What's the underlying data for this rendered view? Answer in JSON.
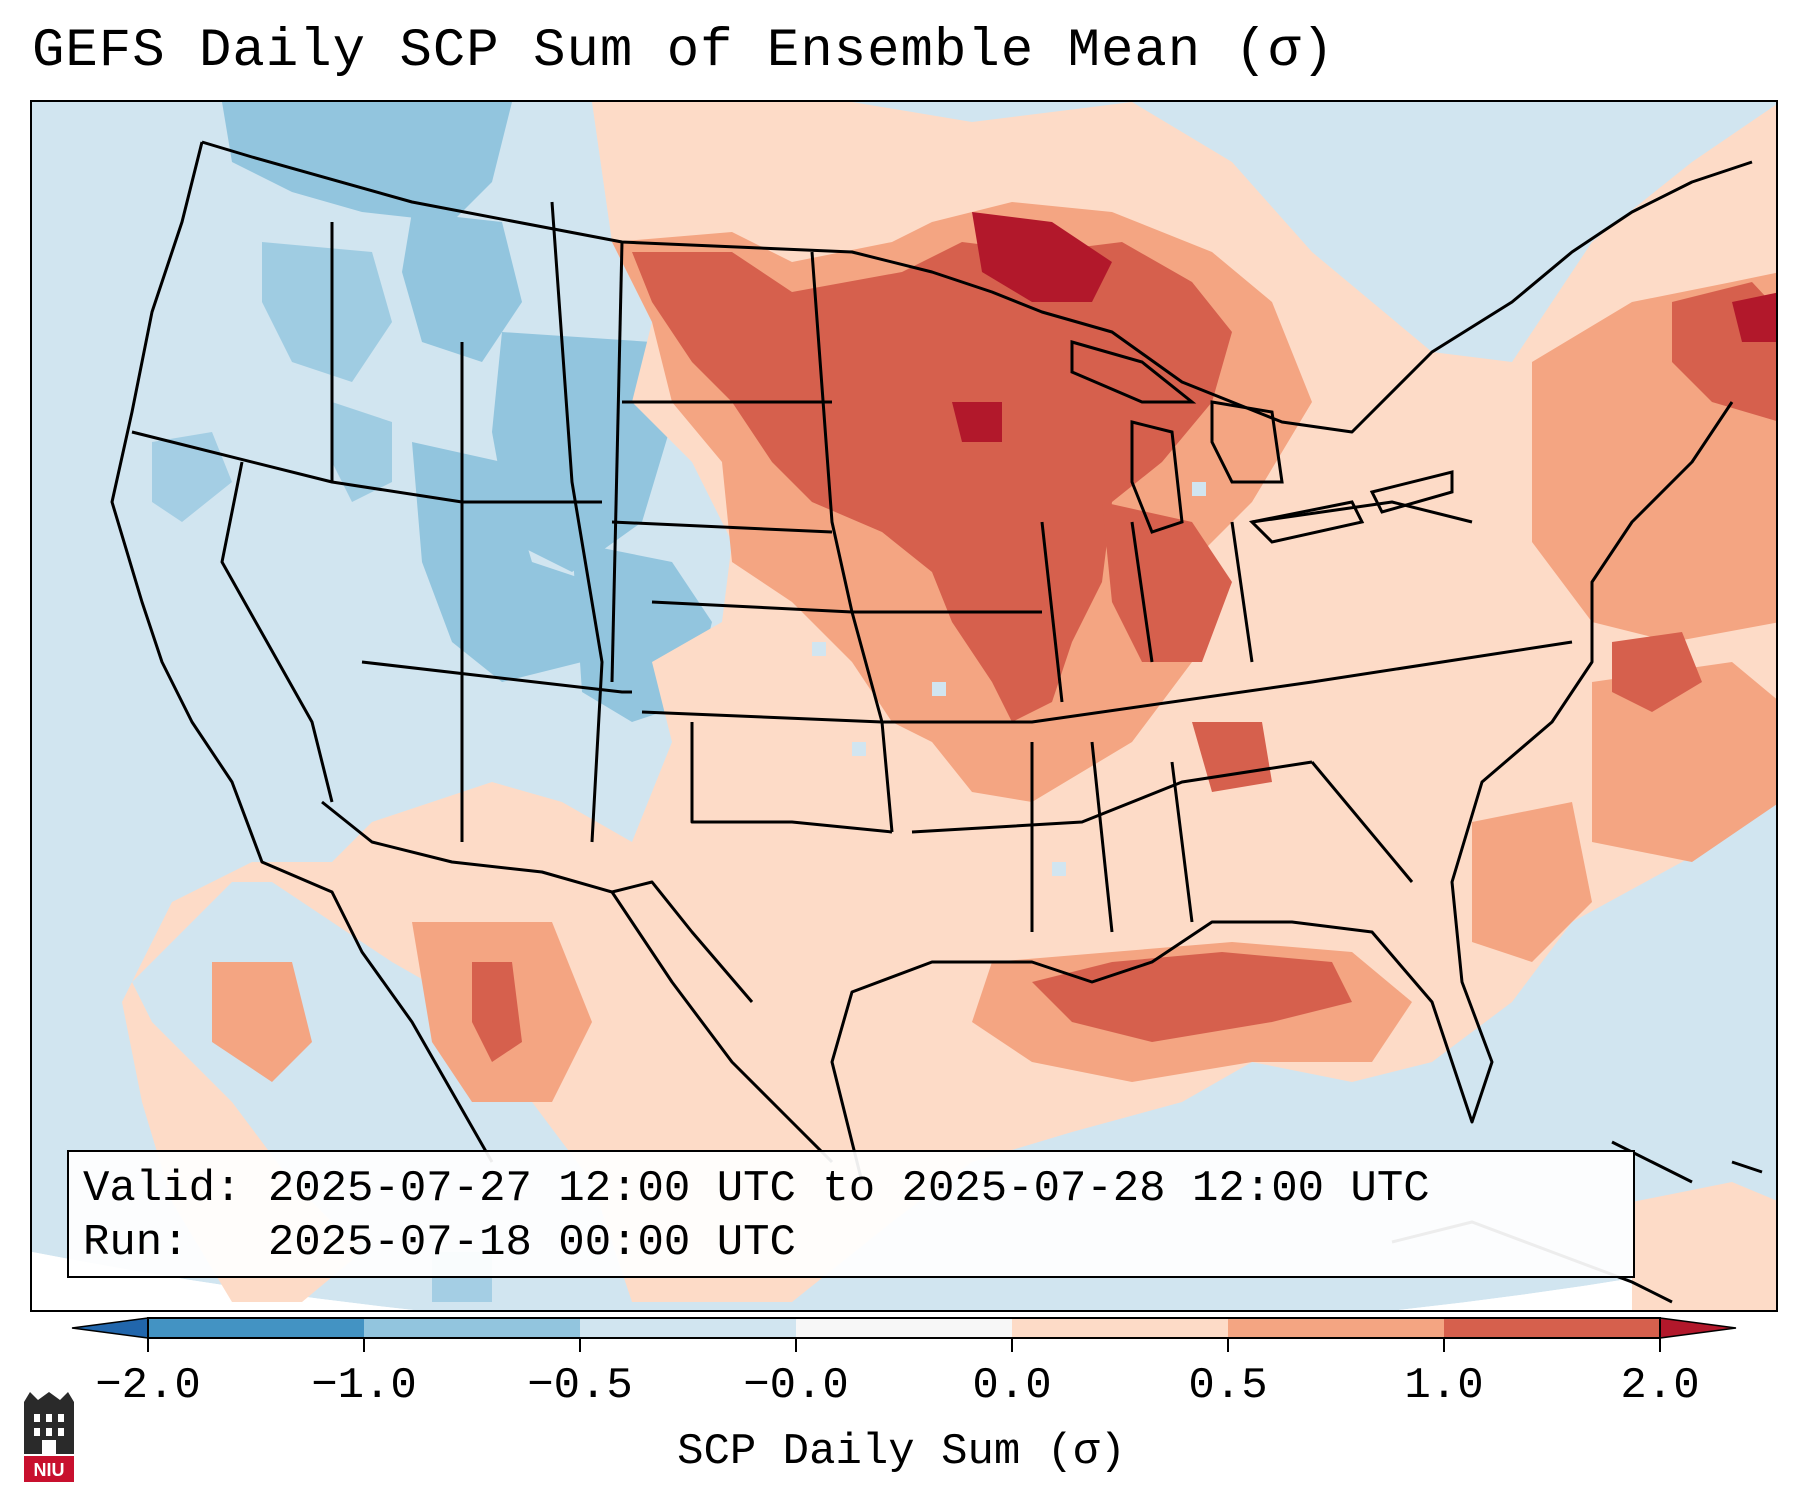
{
  "title": "GEFS Daily SCP Sum of Ensemble Mean (σ)",
  "info": {
    "valid_label": "Valid:",
    "valid_text": "2025-07-27 12:00 UTC to 2025-07-28 12:00 UTC",
    "run_label": "Run:",
    "run_text": "2025-07-18 00:00 UTC"
  },
  "colorbar": {
    "label": "SCP Daily Sum (σ)",
    "ticks": [
      "−2.0",
      "−1.0",
      "−0.5",
      "−0.0",
      "0.0",
      "0.5",
      "1.0",
      "2.0"
    ],
    "colors": [
      "#4393c3",
      "#92c5de",
      "#d1e5f0",
      "#f7f7f7",
      "#fddbc7",
      "#f4a582",
      "#d6604d",
      "#b2182b"
    ],
    "extend_low_color": "#2166ac",
    "extend_high_color": "#b2182b"
  },
  "map": {
    "land_ocean_outside": "#ffffff",
    "anomaly_regions": [
      {
        "region": "Upper Midwest / Minnesota",
        "level": "2.0"
      },
      {
        "region": "Wisconsin / Iowa / Illinois",
        "level": "1.0"
      },
      {
        "region": "Northern Plains",
        "level": "1.0"
      },
      {
        "region": "Gulf Coast",
        "level": "1.0"
      },
      {
        "region": "Northeast / New England",
        "level": "0.5"
      },
      {
        "region": "Western Atlantic",
        "level": "0.5"
      },
      {
        "region": "Southern Plains / Texas",
        "level": "0.0"
      },
      {
        "region": "Mexico (Sierra Madre)",
        "level": "0.5"
      },
      {
        "region": "Great Basin / Utah / Colorado",
        "level": "−1.0"
      },
      {
        "region": "Pacific Northwest / Idaho",
        "level": "−1.0"
      }
    ]
  },
  "logo": {
    "text": "NIU"
  }
}
